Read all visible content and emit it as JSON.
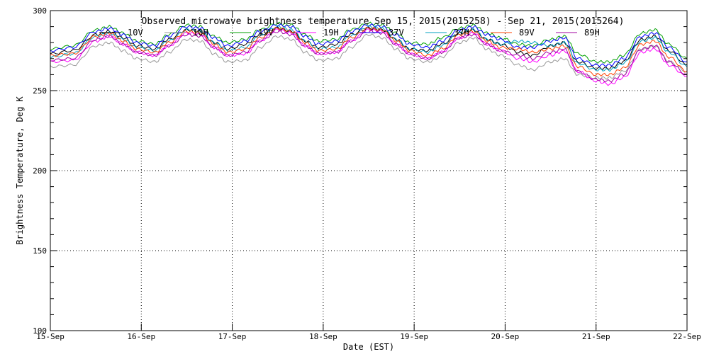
{
  "chart_data": {
    "type": "line",
    "title": "Observed microwave brightness temperature Sep 15, 2015(2015258) - Sep 21, 2015(2015264)",
    "xlabel": "Date (EST)",
    "ylabel": "Brightness Temperature, Deg K",
    "xlim": [
      0,
      7
    ],
    "ylim": [
      100,
      300
    ],
    "x_ticks": [
      {
        "value": 0,
        "label": "15-Sep"
      },
      {
        "value": 1,
        "label": "16-Sep"
      },
      {
        "value": 2,
        "label": "17-Sep"
      },
      {
        "value": 3,
        "label": "18-Sep"
      },
      {
        "value": 4,
        "label": "19-Sep"
      },
      {
        "value": 5,
        "label": "20-Sep"
      },
      {
        "value": 6,
        "label": "21-Sep"
      },
      {
        "value": 7,
        "label": "22-Sep"
      }
    ],
    "y_ticks": [
      100,
      150,
      200,
      250,
      300
    ],
    "grid": true,
    "legend_position": "top",
    "x": [
      0,
      0.25,
      0.5,
      0.65,
      0.8,
      0.95,
      1.15,
      1.3,
      1.5,
      1.65,
      1.8,
      1.95,
      2.15,
      2.3,
      2.5,
      2.65,
      2.8,
      2.95,
      3.15,
      3.3,
      3.5,
      3.65,
      3.8,
      3.95,
      4.15,
      4.3,
      4.5,
      4.65,
      4.8,
      4.95,
      5.15,
      5.3,
      5.5,
      5.65,
      5.8,
      6.0,
      6.15,
      6.3,
      6.5,
      6.65,
      6.8,
      7.0
    ],
    "series": [
      {
        "name": "10V",
        "color": "#000000",
        "values": [
          273,
          275,
          285,
          287,
          283,
          278,
          276,
          282,
          288,
          287,
          280,
          276,
          279,
          285,
          289,
          287,
          281,
          277,
          279,
          285,
          289,
          288,
          282,
          276,
          275,
          279,
          286,
          288,
          282,
          279,
          274,
          272,
          278,
          280,
          268,
          264,
          264,
          268,
          282,
          284,
          275,
          266
        ]
      },
      {
        "name": "10H",
        "color": "#999999",
        "values": [
          265,
          266,
          278,
          280,
          275,
          270,
          268,
          274,
          282,
          281,
          273,
          268,
          269,
          277,
          284,
          282,
          274,
          269,
          270,
          277,
          285,
          283,
          276,
          270,
          268,
          271,
          280,
          283,
          276,
          272,
          266,
          263,
          268,
          270,
          260,
          258,
          258,
          262,
          276,
          278,
          268,
          262
        ]
      },
      {
        "name": "19V",
        "color": "#00a000",
        "values": [
          276,
          278,
          288,
          290,
          286,
          281,
          279,
          285,
          291,
          290,
          284,
          280,
          282,
          288,
          292,
          291,
          285,
          281,
          282,
          288,
          292,
          291,
          286,
          280,
          279,
          283,
          289,
          291,
          286,
          283,
          279,
          278,
          282,
          284,
          273,
          268,
          268,
          272,
          286,
          288,
          279,
          270
        ]
      },
      {
        "name": "19H",
        "color": "#ff00ff",
        "values": [
          268,
          269,
          281,
          284,
          279,
          274,
          272,
          278,
          286,
          285,
          277,
          272,
          273,
          281,
          288,
          286,
          278,
          273,
          274,
          281,
          288,
          287,
          279,
          273,
          270,
          274,
          283,
          286,
          279,
          275,
          270,
          268,
          272,
          275,
          262,
          256,
          254,
          258,
          274,
          276,
          266,
          259
        ]
      },
      {
        "name": "37V",
        "color": "#0000ff",
        "values": [
          275,
          277,
          287,
          289,
          285,
          280,
          278,
          284,
          290,
          289,
          283,
          278,
          281,
          287,
          291,
          290,
          284,
          279,
          281,
          287,
          291,
          290,
          285,
          279,
          277,
          281,
          288,
          290,
          285,
          282,
          277,
          277,
          281,
          283,
          270,
          266,
          266,
          270,
          284,
          286,
          277,
          268
        ]
      },
      {
        "name": "37H",
        "color": "#00a0c0",
        "values": [
          271,
          273,
          284,
          286,
          282,
          277,
          275,
          281,
          288,
          287,
          280,
          275,
          277,
          284,
          290,
          288,
          281,
          276,
          277,
          284,
          290,
          289,
          282,
          276,
          274,
          278,
          286,
          288,
          282,
          279,
          281,
          280,
          278,
          280,
          267,
          263,
          263,
          267,
          281,
          283,
          274,
          265
        ]
      },
      {
        "name": "89V",
        "color": "#ff4000",
        "values": [
          272,
          273,
          284,
          286,
          281,
          276,
          274,
          280,
          287,
          286,
          279,
          274,
          276,
          283,
          289,
          287,
          280,
          275,
          276,
          283,
          289,
          288,
          281,
          275,
          272,
          276,
          285,
          287,
          281,
          277,
          276,
          274,
          276,
          278,
          265,
          260,
          260,
          264,
          279,
          281,
          271,
          262
        ]
      },
      {
        "name": "89H",
        "color": "#a000a0",
        "values": [
          269,
          270,
          282,
          284,
          279,
          274,
          272,
          278,
          285,
          284,
          277,
          272,
          274,
          281,
          287,
          285,
          278,
          273,
          274,
          281,
          287,
          286,
          279,
          273,
          270,
          274,
          283,
          285,
          279,
          275,
          272,
          270,
          274,
          276,
          262,
          257,
          256,
          260,
          276,
          278,
          268,
          260
        ]
      }
    ]
  }
}
